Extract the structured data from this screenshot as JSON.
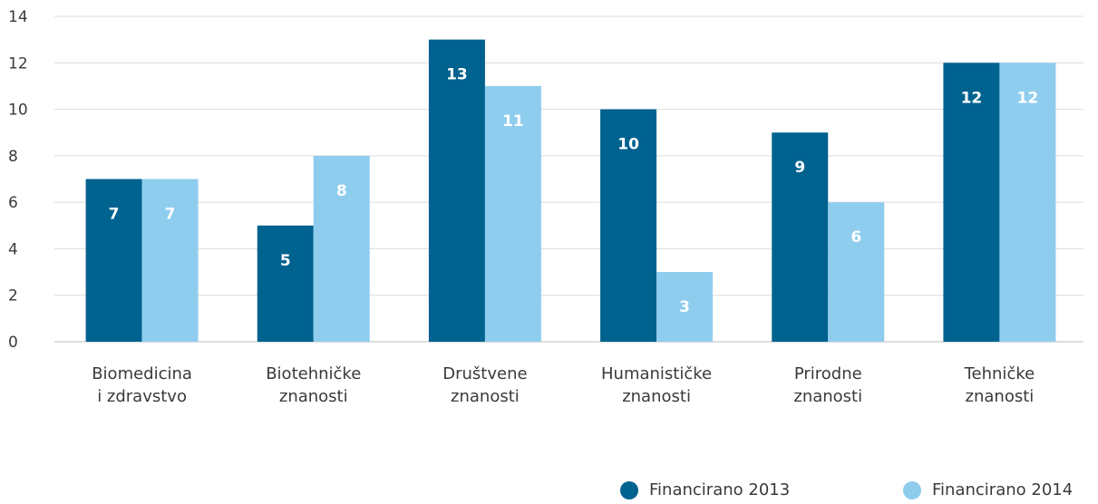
{
  "chart_data": {
    "type": "bar",
    "categories": [
      [
        "Biomedicina",
        "i zdravstvo"
      ],
      [
        "Biotehničke",
        "znanosti"
      ],
      [
        "Društvene",
        "znanosti"
      ],
      [
        "Humanističke",
        "znanosti"
      ],
      [
        "Prirodne",
        "znanosti"
      ],
      [
        "Tehničke",
        "znanosti"
      ]
    ],
    "series": [
      {
        "name": "Financirano 2013",
        "color": "#00628f",
        "values": [
          7,
          5,
          13,
          10,
          9,
          12
        ]
      },
      {
        "name": "Financirano 2014",
        "color": "#8fcdee",
        "values": [
          7,
          8,
          11,
          3,
          6,
          12
        ]
      }
    ],
    "ylim": [
      0,
      14
    ],
    "yticks": [
      0,
      2,
      4,
      6,
      8,
      10,
      12,
      14
    ],
    "grid": true,
    "legend_position": "bottom-right",
    "title": "",
    "xlabel": "",
    "ylabel": ""
  }
}
